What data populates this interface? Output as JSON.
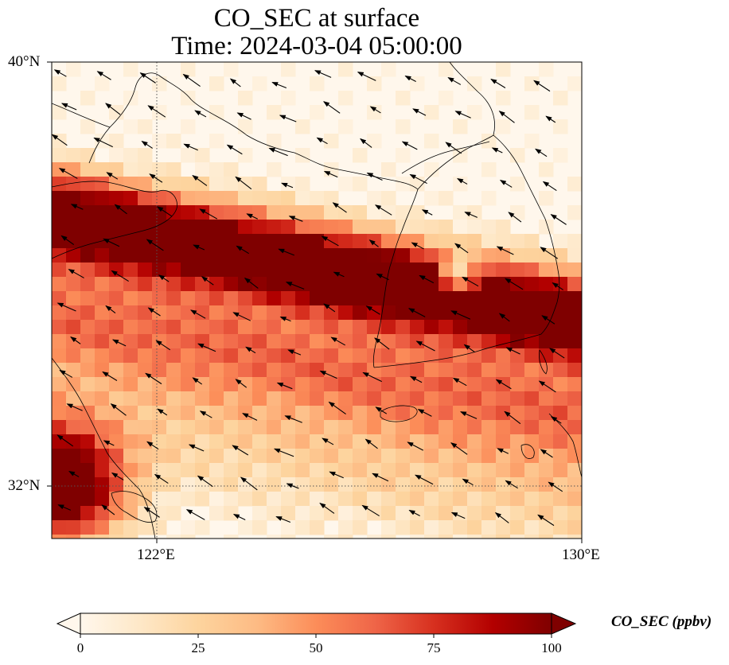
{
  "title": {
    "line1": "CO_SEC at surface",
    "line2": "Time: 2024-03-04 05:00:00"
  },
  "map": {
    "lon_range_deg": [
      120,
      130
    ],
    "lat_range_deg": [
      31,
      40
    ],
    "lon_ticks": [
      {
        "value": 122,
        "label": "122°E"
      },
      {
        "value": 130,
        "label": "130°E"
      }
    ],
    "lat_ticks": [
      {
        "value": 40,
        "label": "40°N"
      },
      {
        "value": 32,
        "label": "32°N"
      }
    ],
    "gridlines": "dotted",
    "vectors_shown": "wind arrows",
    "plume_description": "high CO_SEC band oriented WNW-ESE across the Yellow Sea and southern Korean Peninsula, plus a high region near the Yangtze estuary"
  },
  "colorbar": {
    "label": "CO_SEC (ppbv)",
    "colormap": "OrRd",
    "extend": "both",
    "min": 0,
    "max": 100,
    "ticks": [
      {
        "value": 0,
        "label": "0"
      },
      {
        "value": 25,
        "label": "25"
      },
      {
        "value": 50,
        "label": "50"
      },
      {
        "value": 75,
        "label": "75"
      },
      {
        "value": 100,
        "label": "100"
      }
    ],
    "stops": [
      "#fff7ec",
      "#fee8c8",
      "#fdd49e",
      "#fdbb84",
      "#fc8d59",
      "#ef6548",
      "#d7301f",
      "#b30000",
      "#7f0000"
    ]
  }
}
